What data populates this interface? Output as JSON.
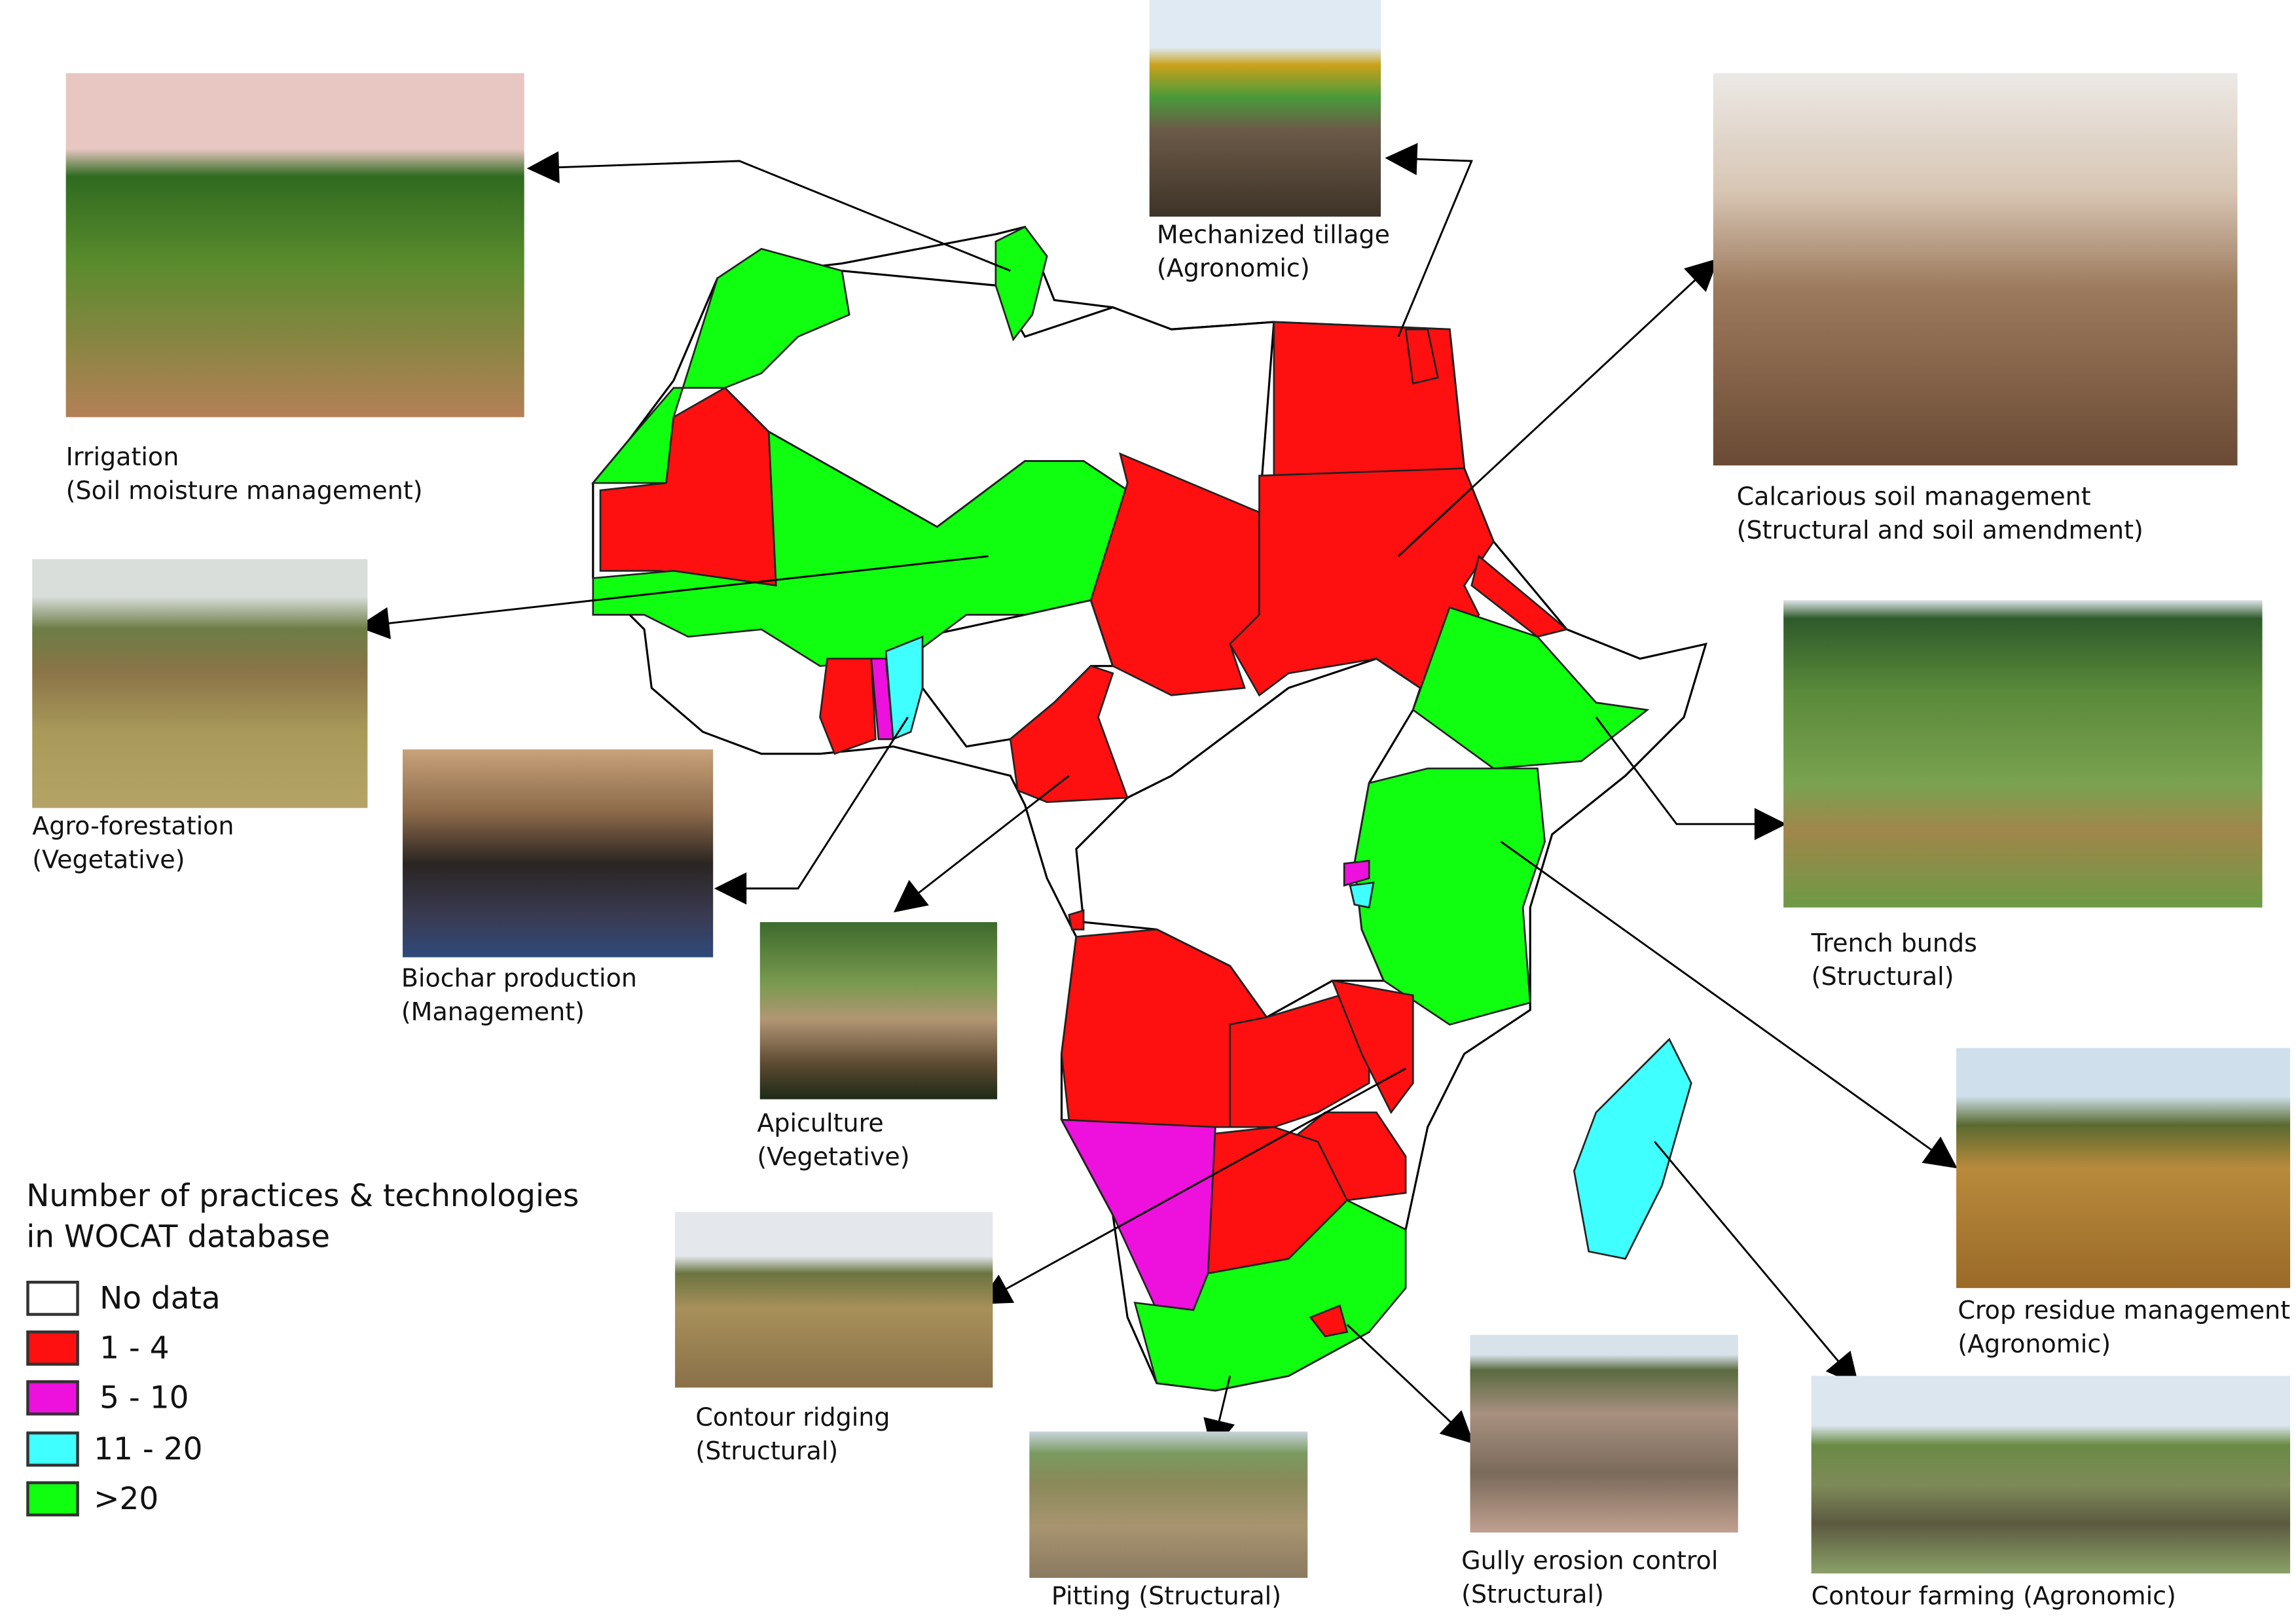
{
  "legend": {
    "title_line1": "Number of practices & technologies",
    "title_line2": "in WOCAT database",
    "items": [
      {
        "label": "No data",
        "color": "#ffffff"
      },
      {
        "label": "1 - 4",
        "color": "#ff1010"
      },
      {
        "label": "5 - 10",
        "color": "#ee10dd"
      },
      {
        "label": "11 - 20",
        "color": "#40ffff"
      },
      {
        "label": ">20",
        "color": "#10ff10"
      }
    ]
  },
  "photos": [
    {
      "line1": "Irrigation",
      "line2": "(Soil moisture management)"
    },
    {
      "line1": "Mechanized tillage",
      "line2": "(Agronomic)"
    },
    {
      "line1": "Calcarious soil management",
      "line2": "(Structural and soil amendment)"
    },
    {
      "line1": "Agro-forestation",
      "line2": "(Vegetative)"
    },
    {
      "line1": "Biochar production",
      "line2": "(Management)"
    },
    {
      "line1": "Apiculture",
      "line2": "(Vegetative)"
    },
    {
      "line1": "Trench bunds",
      "line2": "(Structural)"
    },
    {
      "line1": "Crop residue management",
      "line2": "(Agronomic)"
    },
    {
      "line1": "Contour farming (Agronomic)",
      "line2": ""
    },
    {
      "line1": "Contour ridging",
      "line2": "(Structural)"
    },
    {
      "line1": "Pitting (Structural)",
      "line2": ""
    },
    {
      "line1": "Gully erosion control",
      "line2": "(Structural)"
    }
  ]
}
